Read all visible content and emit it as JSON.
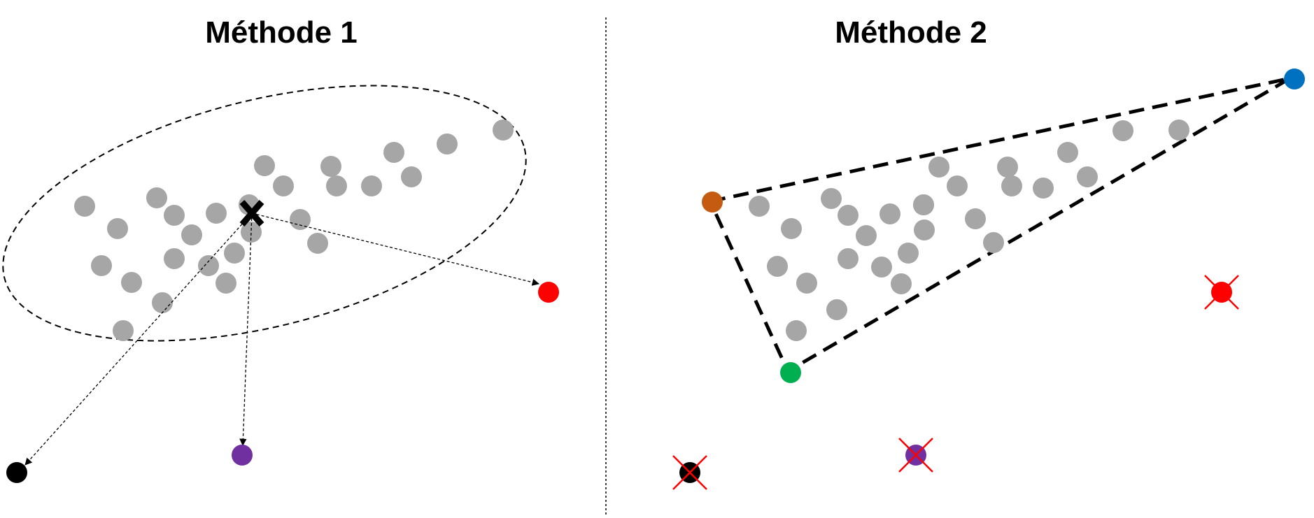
{
  "panels": {
    "left": {
      "title": "Méthode 1",
      "method": "distance from the mean inside an ellipse",
      "mean_marker": "black-cross",
      "points_color": "#a6a6a6",
      "outliers": [
        {
          "name": "red-point",
          "color": "#ff0000"
        },
        {
          "name": "purple-point",
          "color": "#7030a0"
        },
        {
          "name": "black-point",
          "color": "#000000"
        }
      ]
    },
    "right": {
      "title": "Méthode 2",
      "method": "convex hull of the data",
      "points_color": "#a6a6a6",
      "hull_vertices": [
        {
          "name": "orange-point",
          "color": "#c55a11"
        },
        {
          "name": "blue-point",
          "color": "#0070c0"
        },
        {
          "name": "green-point",
          "color": "#00b050"
        }
      ],
      "rejected_points": [
        {
          "name": "red-point",
          "color": "#ff0000"
        },
        {
          "name": "purple-point",
          "color": "#7030a0"
        },
        {
          "name": "black-point",
          "color": "#000000"
        }
      ],
      "reject_mark_color": "#ff0000"
    }
  },
  "divider": "dotted vertical line"
}
